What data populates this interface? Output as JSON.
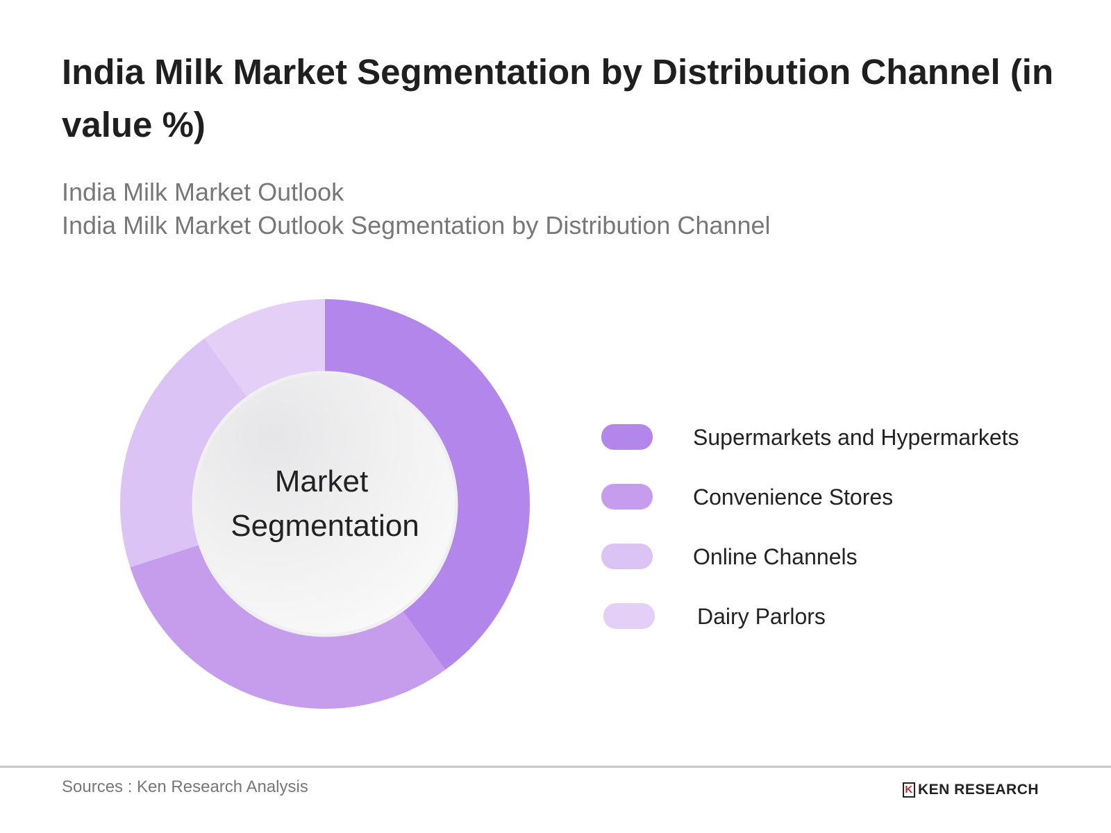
{
  "title": "India Milk Market Segmentation by Distribution Channel (in value %)",
  "subtitle_1": "India Milk Market Outlook",
  "subtitle_2": "India Milk Market Outlook Segmentation by Distribution Channel",
  "center_label_1": "Market",
  "center_label_2": "Segmentation",
  "source": "Sources : Ken Research Analysis",
  "logo_text": "KEN RESEARCH",
  "chart_data": {
    "type": "pie",
    "variant": "donut",
    "title": "India Milk Market Segmentation by Distribution Channel (in value %)",
    "categories": [
      "Supermarkets and Hypermarkets",
      "Convenience Stores",
      "Online Channels",
      "Dairy Parlors"
    ],
    "values": [
      40,
      30,
      20,
      10
    ],
    "colors": [
      "#b386eb",
      "#c69ded",
      "#dcc3f5",
      "#e4d0f7"
    ],
    "legend": "right"
  }
}
